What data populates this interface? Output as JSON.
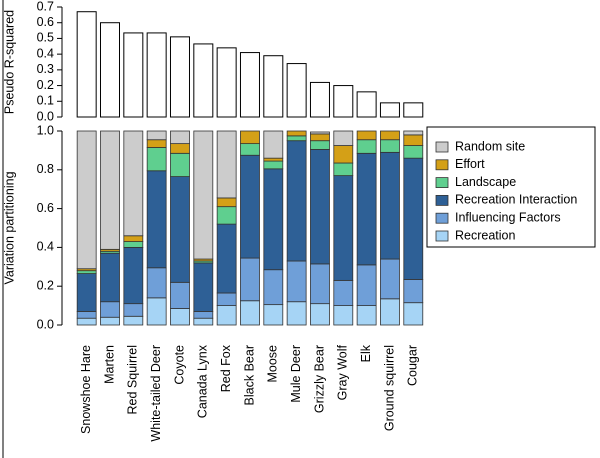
{
  "chart_data": [
    {
      "type": "bar",
      "ylabel": "Pseudo R-squared",
      "color": "#ffffff",
      "values": [
        0.67,
        0.6,
        0.535,
        0.535,
        0.51,
        0.465,
        0.44,
        0.41,
        0.39,
        0.34,
        0.22,
        0.2,
        0.16,
        0.09,
        0.09
      ],
      "ylim": [
        0,
        0.7
      ],
      "yticks": [
        {
          "value": 0,
          "label": "0.0"
        },
        0.1,
        0.2,
        0.3,
        0.4,
        0.5,
        0.6,
        0.7
      ]
    },
    {
      "type": "stacked_bar",
      "ylabel": "Variation partitioning",
      "categories": [
        "Snowshoe Hare",
        "Marten",
        "Red Squirrel",
        "White-tailed Deer",
        "Coyote",
        "Canada Lynx",
        "Red Fox",
        "Black Bear",
        "Moose",
        "Mule Deer",
        "Grizzly Bear",
        "Gray Wolf",
        "Elk",
        "Ground squirrel",
        "Cougar"
      ],
      "series": [
        {
          "name": "Random site",
          "color": "#cccccc",
          "values": [
            0.71,
            0.61,
            0.54,
            0.045,
            0.065,
            0.66,
            0.345,
            0,
            0.14,
            0,
            0.01,
            0.075,
            0,
            0,
            0.02
          ]
        },
        {
          "name": "Effort",
          "color": "#d4a017",
          "values": [
            0.01,
            0.01,
            0.03,
            0.04,
            0.05,
            0.01,
            0.045,
            0.065,
            0.015,
            0.025,
            0.035,
            0.09,
            0.045,
            0.045,
            0.055
          ]
        },
        {
          "name": "Landscape",
          "color": "#5fcf8f",
          "values": [
            0.015,
            0.01,
            0.03,
            0.12,
            0.12,
            0.01,
            0.09,
            0.06,
            0.04,
            0.025,
            0.045,
            0.065,
            0.07,
            0.065,
            0.065
          ]
        },
        {
          "name": "Recreation Interaction",
          "color": "#2e6096",
          "values": [
            0.195,
            0.25,
            0.29,
            0.5,
            0.545,
            0.25,
            0.355,
            0.53,
            0.52,
            0.62,
            0.59,
            0.54,
            0.575,
            0.55,
            0.625
          ]
        },
        {
          "name": "Influencing Factors",
          "color": "#6f9fd8",
          "values": [
            0.035,
            0.08,
            0.065,
            0.155,
            0.135,
            0.035,
            0.065,
            0.22,
            0.18,
            0.21,
            0.205,
            0.13,
            0.21,
            0.205,
            0.12
          ]
        },
        {
          "name": "Recreation",
          "color": "#a6d4f5",
          "values": [
            0.035,
            0.04,
            0.045,
            0.14,
            0.085,
            0.035,
            0.1,
            0.125,
            0.105,
            0.12,
            0.11,
            0.1,
            0.1,
            0.135,
            0.115
          ]
        }
      ],
      "ylim": [
        0,
        1
      ],
      "yticks": [
        {
          "value": 0,
          "label": "0.0"
        },
        0.2,
        0.4,
        0.6,
        0.8,
        {
          "value": 1,
          "label": "1.0"
        }
      ]
    }
  ]
}
